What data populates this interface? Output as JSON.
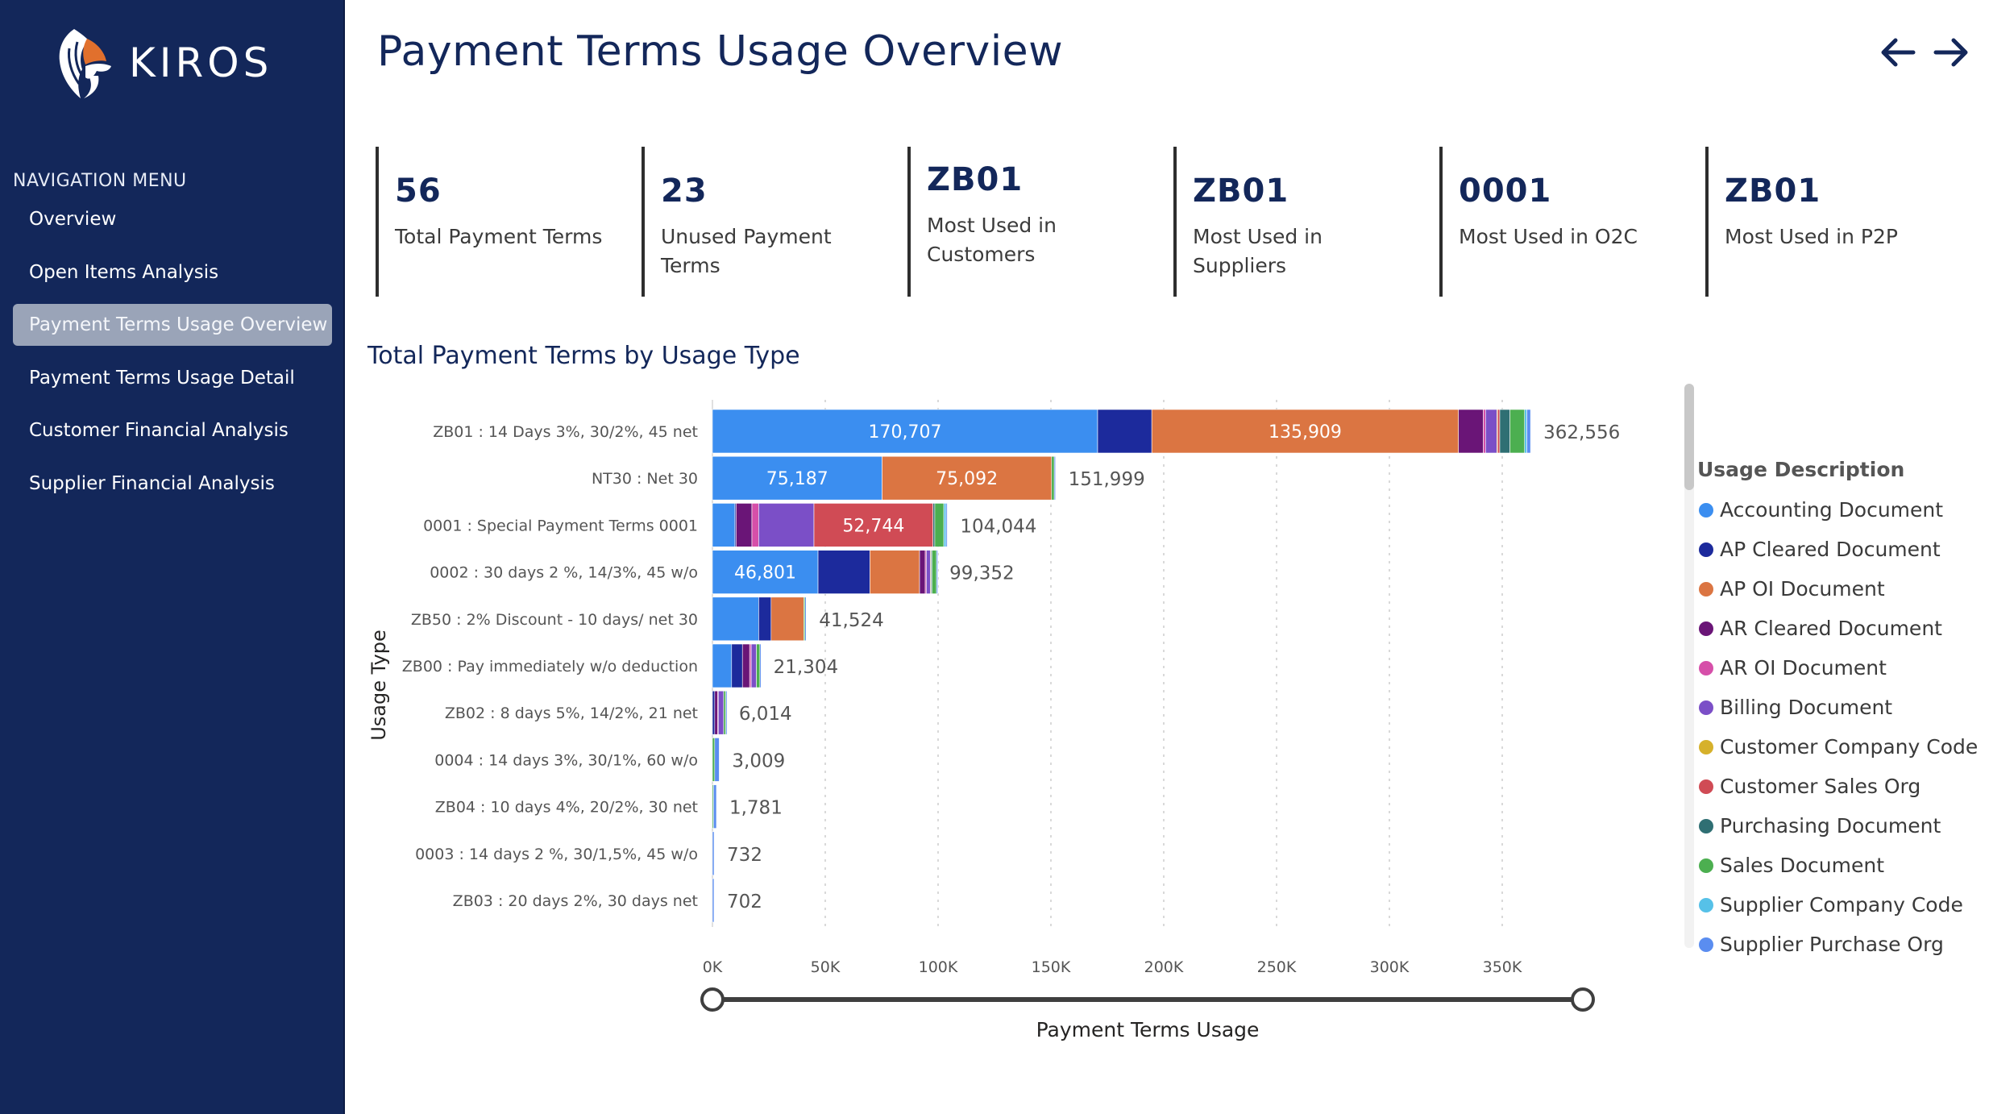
{
  "brand": {
    "name": "KIROS"
  },
  "nav": {
    "title": "NAVIGATION MENU",
    "items": [
      {
        "label": "Overview"
      },
      {
        "label": "Open Items Analysis"
      },
      {
        "label": "Payment Terms Usage Overview",
        "active": true
      },
      {
        "label": "Payment Terms Usage Detail"
      },
      {
        "label": "Customer Financial Analysis"
      },
      {
        "label": "Supplier Financial Analysis"
      }
    ]
  },
  "header": {
    "title": "Payment Terms Usage Overview",
    "icons": [
      "back-arrow-icon",
      "forward-arrow-icon"
    ]
  },
  "kpis": [
    {
      "value": "56",
      "label": "Total Payment Terms"
    },
    {
      "value": "23",
      "label": "Unused Payment Terms"
    },
    {
      "value": "ZB01",
      "label": "Most Used in Customers"
    },
    {
      "value": "ZB01",
      "label": "Most Used in Suppliers"
    },
    {
      "value": "0001",
      "label": "Most Used in O2C"
    },
    {
      "value": "ZB01",
      "label": "Most Used in P2P"
    }
  ],
  "chart_title": "Total Payment Terms by Usage Type",
  "colors": {
    "Accounting Document": "#3b8ef0",
    "AP Cleared Document": "#1c2a9c",
    "AP OI Document": "#db7542",
    "AR Cleared Document": "#6a1577",
    "AR OI Document": "#d64fa9",
    "Billing Document": "#7b4fc7",
    "Customer Company Code": "#d6b12b",
    "Customer Sales Org": "#d04b55",
    "Purchasing Document": "#2f6f73",
    "Sales Document": "#4caf50",
    "Supplier Company Code": "#56c1e8",
    "Supplier Purchase Org": "#5a8df0"
  },
  "chart_data": {
    "type": "bar",
    "orientation": "horizontal",
    "stacked": true,
    "ylabel": "Usage Type",
    "xlabel": "Payment Terms Usage",
    "xlim": [
      0,
      400000
    ],
    "xticks": [
      0,
      50000,
      100000,
      150000,
      200000,
      250000,
      300000,
      350000
    ],
    "xtick_labels": [
      "0K",
      "50K",
      "100K",
      "150K",
      "200K",
      "250K",
      "300K",
      "350K"
    ],
    "legend_title": "Usage Description",
    "legend_position": "right",
    "categories": [
      "ZB01 : 14 Days 3%, 30/2%, 45 net",
      "NT30 : Net 30",
      "0001 : Special Payment Terms 0001",
      "0002 : 30 days 2 %, 14/3%, 45 w/o",
      "ZB50 : 2% Discount - 10 days/ net 30",
      "ZB00 : Pay immediately w/o deduction",
      "ZB02 : 8 days 5%, 14/2%, 21 net",
      "0004 : 14 days 3%, 30/1%, 60 w/o",
      "ZB04 : 10 days 4%, 20/2%, 30 net",
      "0003 : 14 days 2 %, 30/1,5%, 45 w/o",
      "ZB03 : 20 days 2%, 30 days net"
    ],
    "totals": [
      362556,
      151999,
      104044,
      99352,
      41524,
      21304,
      6014,
      3009,
      1781,
      732,
      702
    ],
    "total_labels": [
      "362,556",
      "151,999",
      "104,044",
      "99,352",
      "41,524",
      "21,304",
      "6,014",
      "3,009",
      "1,781",
      "732",
      "702"
    ],
    "series": [
      {
        "name": "Accounting Document",
        "values": [
          170707,
          75187,
          10000,
          46801,
          20500,
          8500,
          0,
          0,
          0,
          0,
          0
        ],
        "labels": [
          "170,707",
          "75,187",
          "",
          "46,801",
          "",
          "",
          "",
          "",
          "",
          "",
          ""
        ]
      },
      {
        "name": "AP Cleared Document",
        "values": [
          24000,
          0,
          500,
          23000,
          5500,
          4800,
          1000,
          0,
          0,
          0,
          0
        ]
      },
      {
        "name": "AP OI Document",
        "values": [
          135909,
          75092,
          0,
          22000,
          14500,
          0,
          0,
          0,
          0,
          0,
          0
        ],
        "labels": [
          "135,909",
          "75,092",
          "",
          "",
          "",
          "",
          "",
          "",
          "",
          "",
          ""
        ]
      },
      {
        "name": "AR Cleared Document",
        "values": [
          11000,
          0,
          7000,
          2500,
          0,
          3200,
          1300,
          0,
          0,
          0,
          0
        ]
      },
      {
        "name": "AR OI Document",
        "values": [
          1000,
          0,
          3000,
          500,
          0,
          700,
          300,
          0,
          0,
          0,
          0
        ]
      },
      {
        "name": "Billing Document",
        "values": [
          5000,
          0,
          24500,
          1800,
          0,
          2300,
          2400,
          0,
          0,
          0,
          0
        ]
      },
      {
        "name": "Customer Company Code",
        "values": [
          300,
          0,
          0,
          300,
          0,
          0,
          0,
          0,
          0,
          0,
          0
        ]
      },
      {
        "name": "Customer Sales Org",
        "values": [
          1000,
          0,
          52744,
          0,
          0,
          0,
          0,
          0,
          0,
          0,
          0
        ],
        "labels": [
          "",
          "",
          "52,744",
          "",
          "",
          "",
          "",
          "",
          "",
          "",
          ""
        ]
      },
      {
        "name": "Purchasing Document",
        "values": [
          4500,
          0,
          800,
          400,
          0,
          0,
          0,
          0,
          0,
          0,
          0
        ]
      },
      {
        "name": "Sales Document",
        "values": [
          6500,
          1200,
          4000,
          2000,
          500,
          1500,
          914,
          1000,
          500,
          0,
          0
        ]
      },
      {
        "name": "Supplier Company Code",
        "values": [
          1000,
          0,
          1000,
          0,
          0,
          0,
          0,
          0,
          0,
          0,
          0
        ]
      },
      {
        "name": "Supplier Purchase Org",
        "values": [
          1640,
          520,
          500,
          51,
          524,
          304,
          100,
          2009,
          1281,
          732,
          702
        ]
      }
    ]
  }
}
